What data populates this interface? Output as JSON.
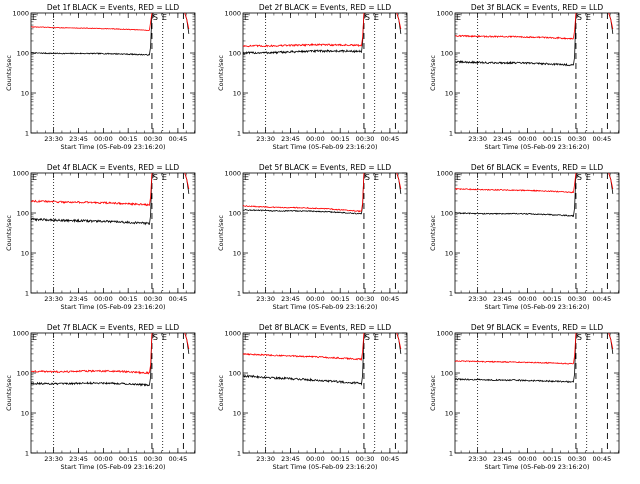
{
  "chart_data": [
    {
      "type": "line",
      "title": "Det 1f BLACK = Events, RED = LLD",
      "ylabel": "Counts/sec",
      "xlabel": "Start Time (05-Feb-09 23:16:20)",
      "yscale": "log",
      "ylim": [
        1,
        1000
      ],
      "yticks": [
        "1",
        "10",
        "100",
        "1000"
      ],
      "xticks": [
        "23:30",
        "23:45",
        "00:00",
        "00:15",
        "00:30",
        "00:45"
      ],
      "markers": [
        "S",
        "E"
      ],
      "grid": false,
      "series": [
        {
          "name": "Events",
          "color": "#000000",
          "start": 100,
          "end": 90,
          "bump": 0.03,
          "noise": 0.03
        },
        {
          "name": "LLD",
          "color": "#ff0000",
          "start": 450,
          "end": 370,
          "bump": 0.02,
          "noise": 0.02
        }
      ]
    },
    {
      "type": "line",
      "title": "Det 2f BLACK = Events, RED = LLD",
      "ylabel": "Counts/sec",
      "xlabel": "Start Time (05-Feb-09 23:16:20)",
      "yscale": "log",
      "ylim": [
        1,
        1000
      ],
      "yticks": [
        "1",
        "10",
        "100",
        "1000"
      ],
      "xticks": [
        "23:30",
        "23:45",
        "00:00",
        "00:15",
        "00:30",
        "00:45"
      ],
      "markers": [
        "S",
        "E"
      ],
      "grid": false,
      "series": [
        {
          "name": "Events",
          "color": "#000000",
          "start": 100,
          "end": 110,
          "bump": 0.05,
          "noise": 0.06
        },
        {
          "name": "LLD",
          "color": "#ff0000",
          "start": 150,
          "end": 155,
          "bump": 0.05,
          "noise": 0.05
        }
      ]
    },
    {
      "type": "line",
      "title": "Det 3f BLACK = Events, RED = LLD",
      "ylabel": "Counts/sec",
      "xlabel": "Start Time (05-Feb-09 23:16:20)",
      "yscale": "log",
      "ylim": [
        1,
        1000
      ],
      "yticks": [
        "1",
        "10",
        "100",
        "1000"
      ],
      "xticks": [
        "23:30",
        "23:45",
        "00:00",
        "00:15",
        "00:30",
        "00:45"
      ],
      "markers": [
        "S",
        "E"
      ],
      "grid": false,
      "series": [
        {
          "name": "Events",
          "color": "#000000",
          "start": 60,
          "end": 50,
          "bump": 0.04,
          "noise": 0.05
        },
        {
          "name": "LLD",
          "color": "#ff0000",
          "start": 270,
          "end": 230,
          "bump": 0.03,
          "noise": 0.04
        }
      ]
    },
    {
      "type": "line",
      "title": "Det 4f BLACK = Events, RED = LLD",
      "ylabel": "Counts/sec",
      "xlabel": "Start Time (05-Feb-09 23:16:20)",
      "yscale": "log",
      "ylim": [
        1,
        1000
      ],
      "yticks": [
        "1",
        "10",
        "100",
        "1000"
      ],
      "xticks": [
        "23:30",
        "23:45",
        "00:00",
        "00:15",
        "00:30",
        "00:45"
      ],
      "markers": [
        "S",
        "E"
      ],
      "grid": false,
      "series": [
        {
          "name": "Events",
          "color": "#000000",
          "start": 70,
          "end": 55,
          "bump": 0.02,
          "noise": 0.06
        },
        {
          "name": "LLD",
          "color": "#ff0000",
          "start": 200,
          "end": 160,
          "bump": 0.03,
          "noise": 0.05
        }
      ]
    },
    {
      "type": "line",
      "title": "Det 5f BLACK = Events, RED = LLD",
      "ylabel": "Counts/sec",
      "xlabel": "Start Time (05-Feb-09 23:16:20)",
      "yscale": "log",
      "ylim": [
        1,
        1000
      ],
      "yticks": [
        "1",
        "10",
        "100",
        "1000"
      ],
      "xticks": [
        "23:30",
        "23:45",
        "00:00",
        "00:15",
        "00:30",
        "00:45"
      ],
      "markers": [
        "S",
        "E"
      ],
      "grid": false,
      "series": [
        {
          "name": "Events",
          "color": "#000000",
          "start": 120,
          "end": 95,
          "bump": 0.06,
          "noise": 0.03
        },
        {
          "name": "LLD",
          "color": "#ff0000",
          "start": 150,
          "end": 110,
          "bump": 0.06,
          "noise": 0.03
        }
      ]
    },
    {
      "type": "line",
      "title": "Det 6f BLACK = Events, RED = LLD",
      "ylabel": "Counts/sec",
      "xlabel": "Start Time (05-Feb-09 23:16:20)",
      "yscale": "log",
      "ylim": [
        1,
        1000
      ],
      "yticks": [
        "1",
        "10",
        "100",
        "1000"
      ],
      "xticks": [
        "23:30",
        "23:45",
        "00:00",
        "00:15",
        "00:30",
        "00:45"
      ],
      "markers": [
        "S",
        "E"
      ],
      "grid": false,
      "series": [
        {
          "name": "Events",
          "color": "#000000",
          "start": 100,
          "end": 85,
          "bump": 0.05,
          "noise": 0.03
        },
        {
          "name": "LLD",
          "color": "#ff0000",
          "start": 400,
          "end": 330,
          "bump": 0.03,
          "noise": 0.03
        }
      ]
    },
    {
      "type": "line",
      "title": "Det 7f BLACK = Events, RED = LLD",
      "ylabel": "Counts/sec",
      "xlabel": "Start Time (05-Feb-09 23:16:20)",
      "yscale": "log",
      "ylim": [
        1,
        1000
      ],
      "yticks": [
        "1",
        "10",
        "100",
        "1000"
      ],
      "xticks": [
        "23:30",
        "23:45",
        "00:00",
        "00:15",
        "00:30",
        "00:45"
      ],
      "markers": [
        "S",
        "E"
      ],
      "grid": false,
      "series": [
        {
          "name": "Events",
          "color": "#000000",
          "start": 55,
          "end": 50,
          "bump": 0.08,
          "noise": 0.05
        },
        {
          "name": "LLD",
          "color": "#ff0000",
          "start": 110,
          "end": 100,
          "bump": 0.08,
          "noise": 0.05
        }
      ]
    },
    {
      "type": "line",
      "title": "Det 8f BLACK = Events, RED = LLD",
      "ylabel": "Counts/sec",
      "xlabel": "Start Time (05-Feb-09 23:16:20)",
      "yscale": "log",
      "ylim": [
        1,
        1000
      ],
      "yticks": [
        "1",
        "10",
        "100",
        "1000"
      ],
      "xticks": [
        "23:30",
        "23:45",
        "00:00",
        "00:15",
        "00:30",
        "00:45"
      ],
      "markers": [
        "S",
        "E"
      ],
      "grid": false,
      "series": [
        {
          "name": "Events",
          "color": "#000000",
          "start": 85,
          "end": 55,
          "bump": 0.02,
          "noise": 0.06
        },
        {
          "name": "LLD",
          "color": "#ff0000",
          "start": 300,
          "end": 220,
          "bump": 0.02,
          "noise": 0.04
        }
      ]
    },
    {
      "type": "line",
      "title": "Det 9f BLACK = Events, RED = LLD",
      "ylabel": "Counts/sec",
      "xlabel": "Start Time (05-Feb-09 23:16:20)",
      "yscale": "log",
      "ylim": [
        1,
        1000
      ],
      "yticks": [
        "1",
        "10",
        "100",
        "1000"
      ],
      "xticks": [
        "23:30",
        "23:45",
        "00:00",
        "00:15",
        "00:30",
        "00:45"
      ],
      "markers": [
        "S",
        "E"
      ],
      "grid": false,
      "series": [
        {
          "name": "Events",
          "color": "#000000",
          "start": 70,
          "end": 60,
          "bump": 0.02,
          "noise": 0.04
        },
        {
          "name": "LLD",
          "color": "#ff0000",
          "start": 200,
          "end": 170,
          "bump": 0.02,
          "noise": 0.03
        }
      ]
    }
  ]
}
